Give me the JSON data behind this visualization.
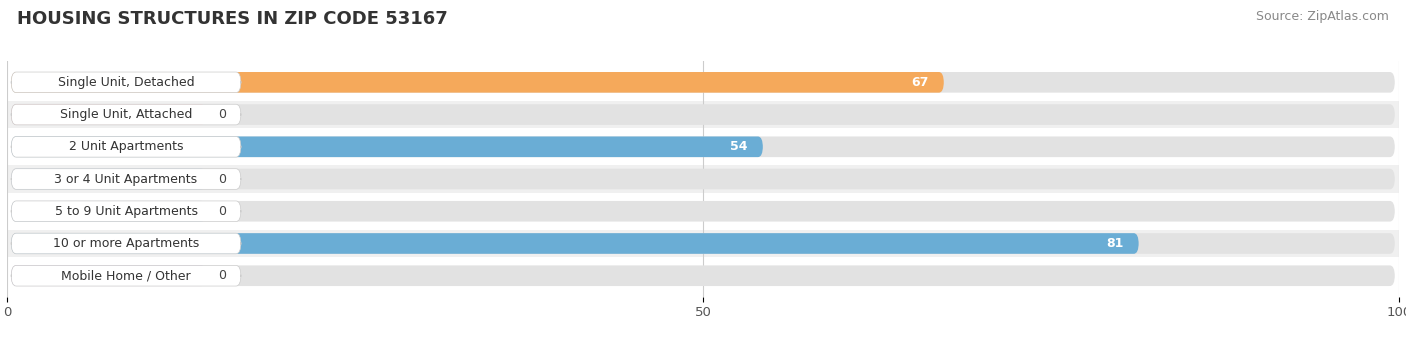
{
  "title": "HOUSING STRUCTURES IN ZIP CODE 53167",
  "source": "Source: ZipAtlas.com",
  "categories": [
    "Single Unit, Detached",
    "Single Unit, Attached",
    "2 Unit Apartments",
    "3 or 4 Unit Apartments",
    "5 to 9 Unit Apartments",
    "10 or more Apartments",
    "Mobile Home / Other"
  ],
  "values": [
    67,
    0,
    54,
    0,
    0,
    81,
    0
  ],
  "bar_colors": [
    "#f5a95b",
    "#f4a0a0",
    "#6aadd5",
    "#a8c8e8",
    "#a8c8e8",
    "#6aadd5",
    "#c8aed4"
  ],
  "row_colors": [
    "#ffffff",
    "#f0f0f0"
  ],
  "xlim": [
    0,
    100
  ],
  "xticks": [
    0,
    50,
    100
  ],
  "fig_bg": "#ffffff",
  "plot_area_bg": "#f5f5f5",
  "title_fontsize": 13,
  "source_fontsize": 9,
  "label_fontsize": 9,
  "value_fontsize": 9
}
